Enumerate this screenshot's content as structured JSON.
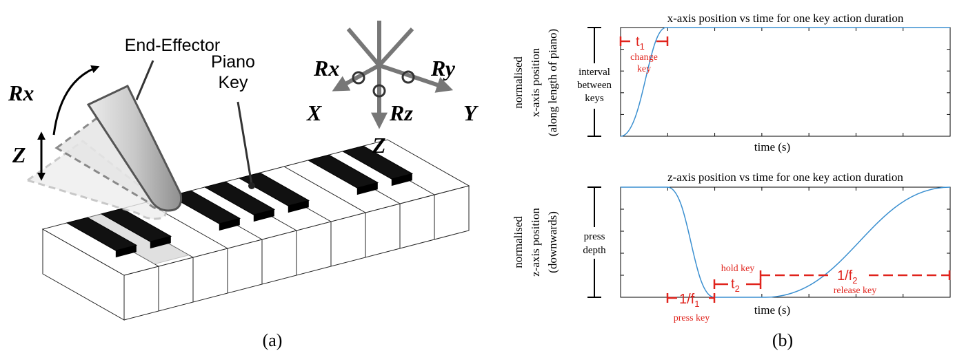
{
  "panel_a": {
    "end_effector": "End-Effector",
    "rotation_label": "Rx",
    "translation_label": "Z",
    "piano_key": [
      "Piano",
      "Key"
    ],
    "axes": {
      "rx": "Rx",
      "ry": "Ry",
      "rz": "Rz",
      "x": "X",
      "y": "Y",
      "z": "Z"
    },
    "caption": "(a)"
  },
  "panel_b": {
    "x_plot": {
      "title": "x-axis position vs time for one key action duration",
      "y_label": [
        "normalised",
        "x-axis position",
        "(along length of piano)"
      ],
      "bracket_label": [
        "interval",
        "between",
        "keys"
      ],
      "interval": {
        "base": "t",
        "sub": "1"
      },
      "interval_label": [
        "change",
        "key"
      ],
      "x_label": "time (s)"
    },
    "z_plot": {
      "title": "z-axis position vs time for one key action duration",
      "y_label": [
        "normalised",
        "z-axis position",
        "(downwards)"
      ],
      "bracket_label": [
        "press",
        "depth"
      ],
      "press": {
        "base": "1/f",
        "sub": "1"
      },
      "press_label": "press key",
      "hold": {
        "base": "t",
        "sub": "2"
      },
      "hold_label": "hold key",
      "release": {
        "base": "1/f",
        "sub": "2"
      },
      "release_label": "release key",
      "x_label": "time (s)"
    },
    "caption": "(b)"
  }
}
